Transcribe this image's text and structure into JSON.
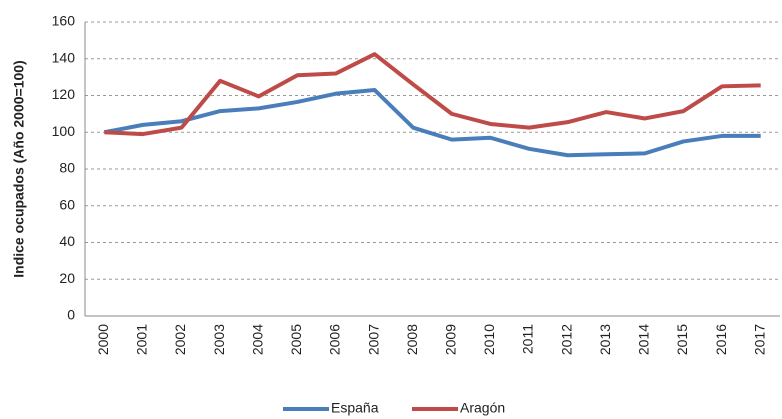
{
  "chart_data": {
    "type": "line",
    "y_label": "Indice ocupados (Año 2000=100)",
    "categories": [
      "2000",
      "2001",
      "2002",
      "2003",
      "2004",
      "2005",
      "2006",
      "2007",
      "2008",
      "2009",
      "2010",
      "2011",
      "2012",
      "2013",
      "2014",
      "2015",
      "2016",
      "2017"
    ],
    "series": [
      {
        "name": "España",
        "color": "#4a7ebb",
        "values": [
          100,
          104,
          106,
          111.5,
          113,
          116.5,
          121,
          123,
          102.5,
          96,
          97,
          91,
          87.5,
          88,
          88.5,
          95,
          98,
          98
        ]
      },
      {
        "name": "Aragón",
        "color": "#be4b48",
        "values": [
          100,
          99,
          102.5,
          128,
          119.5,
          131,
          132,
          142.5,
          126,
          110,
          104.5,
          102.5,
          105.5,
          111,
          107.5,
          111.5,
          125,
          125.5
        ]
      }
    ],
    "ylim": [
      0,
      160
    ],
    "yticks": [
      0,
      20,
      40,
      60,
      80,
      100,
      120,
      140,
      160
    ],
    "grid": true,
    "legend": "bottom"
  }
}
